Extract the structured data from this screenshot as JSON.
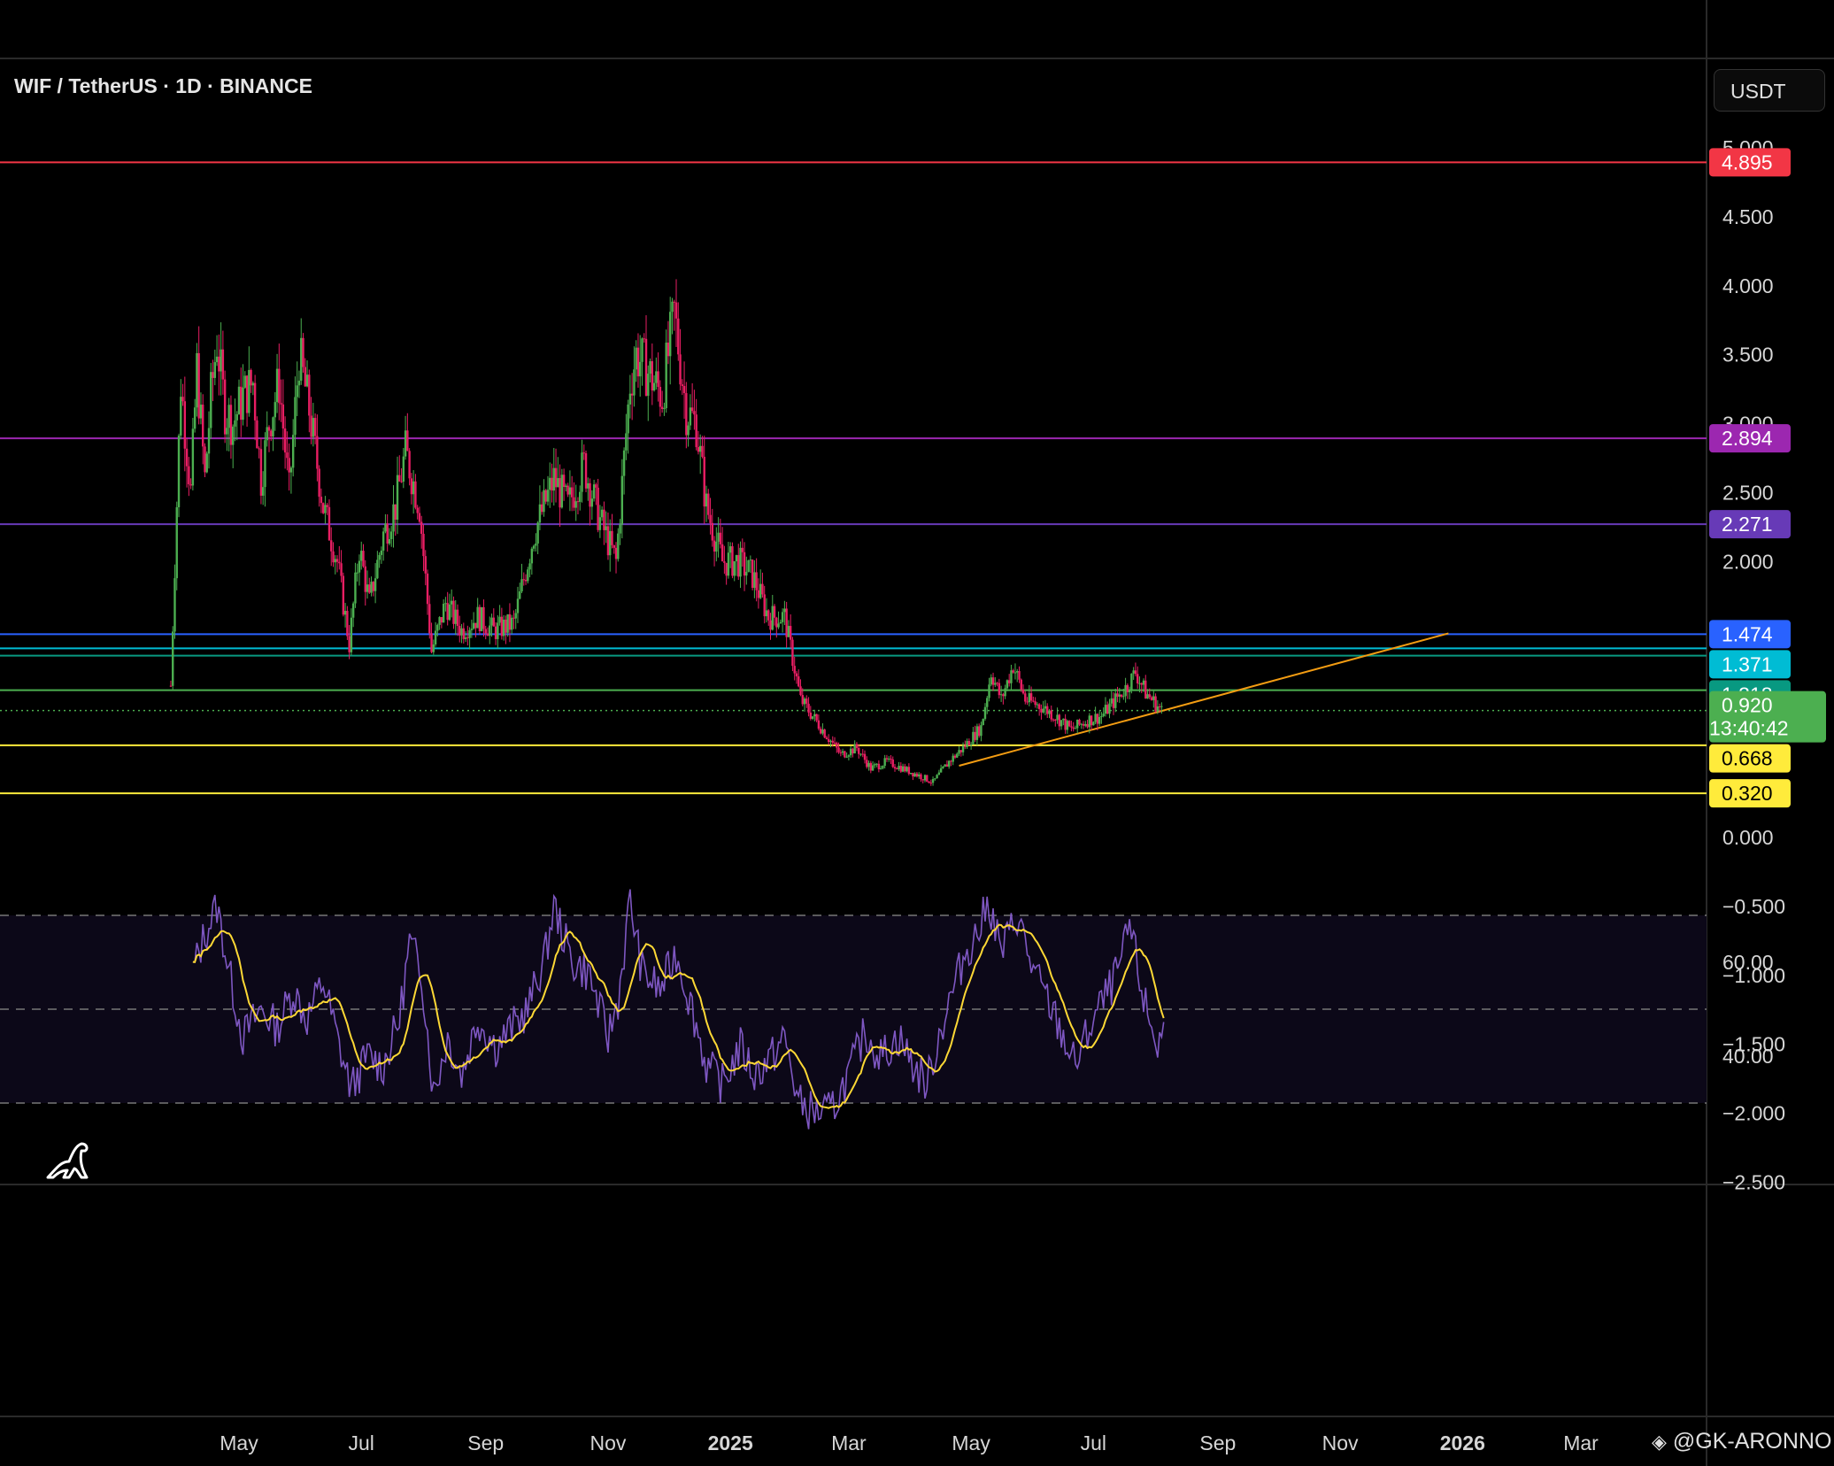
{
  "header": {
    "title": "WIF / TetherUS · 1D · BINANCE",
    "currency_label": "USDT"
  },
  "watermark": "@GK-ARONNO",
  "colors": {
    "background": "#000000",
    "up": "#4caf50",
    "down": "#e91e63",
    "grid": "#1e1e1e",
    "rsi_line": "#7e57c2",
    "rsi_ma": "#fdd835",
    "trendline": "#f39c12"
  },
  "price_axis": {
    "ticks": [
      "5.000",
      "4.500",
      "4.000",
      "3.500",
      "3.000",
      "2.500",
      "2.000",
      "0.000",
      "−0.500",
      "−1.000",
      "−1.500",
      "−2.000",
      "−2.500"
    ],
    "tick_values": [
      5.0,
      4.5,
      4.0,
      3.5,
      3.0,
      2.5,
      2.0,
      0.0,
      -0.5,
      -1.0,
      -1.5,
      -2.0,
      -2.5
    ]
  },
  "price_levels": [
    {
      "label": "4.895",
      "value": 4.895,
      "color": "#f23645",
      "badge_text": "#ffffff"
    },
    {
      "label": "2.894",
      "value": 2.894,
      "color": "#9c27b0",
      "badge_text": "#ffffff"
    },
    {
      "label": "2.271",
      "value": 2.271,
      "color": "#673ab7",
      "badge_text": "#ffffff"
    },
    {
      "label": "1.474",
      "value": 1.474,
      "color": "#2962ff",
      "badge_text": "#ffffff"
    },
    {
      "label": "1.371",
      "value": 1.371,
      "color": "#00bcd4",
      "badge_text": "#ffffff"
    },
    {
      "label": "1.318",
      "value": 1.318,
      "color": "#089981",
      "badge_text": "#ffffff"
    },
    {
      "label": "1.068",
      "value": 1.068,
      "color": "#4caf50",
      "badge_text": "#ffffff"
    },
    {
      "label": "0.668",
      "value": 0.668,
      "color": "#ffeb3b",
      "badge_text": "#000000"
    },
    {
      "label": "0.320",
      "value": 0.32,
      "color": "#ffeb3b",
      "badge_text": "#000000"
    }
  ],
  "current_price": {
    "label": "0.920",
    "countdown": "13:40:42",
    "value": 0.92,
    "color": "#4caf50"
  },
  "time_axis": [
    {
      "label": "May",
      "date": "2024-05-01",
      "bold": false
    },
    {
      "label": "Jul",
      "date": "2024-07-01",
      "bold": false
    },
    {
      "label": "Sep",
      "date": "2024-09-01",
      "bold": false
    },
    {
      "label": "Nov",
      "date": "2024-11-01",
      "bold": false
    },
    {
      "label": "2025",
      "date": "2025-01-01",
      "bold": true
    },
    {
      "label": "Mar",
      "date": "2025-03-01",
      "bold": false
    },
    {
      "label": "May",
      "date": "2025-05-01",
      "bold": false
    },
    {
      "label": "Jul",
      "date": "2025-07-01",
      "bold": false
    },
    {
      "label": "Sep",
      "date": "2025-09-01",
      "bold": false
    },
    {
      "label": "Nov",
      "date": "2025-11-01",
      "bold": false
    },
    {
      "label": "2026",
      "date": "2026-01-01",
      "bold": true
    },
    {
      "label": "Mar",
      "date": "2026-03-01",
      "bold": false
    }
  ],
  "rsi_axis": {
    "ticks": [
      "60.00",
      "40.00"
    ],
    "tick_values": [
      60,
      40
    ],
    "bands": [
      70,
      50,
      30
    ]
  },
  "trendline": {
    "start": {
      "date": "2025-04-25",
      "value": 0.52
    },
    "end": {
      "date": "2025-12-25",
      "value": 1.48
    }
  },
  "chart_data": {
    "type": "candlestick",
    "symbol": "WIF / TetherUS",
    "interval": "1D",
    "exchange": "BINANCE",
    "date_range": [
      "2024-03-28",
      "2025-08-04"
    ],
    "close_anchors": [
      [
        "2024-03-28",
        1.1
      ],
      [
        "2024-04-02",
        3.3
      ],
      [
        "2024-04-07",
        2.5
      ],
      [
        "2024-04-10",
        3.4
      ],
      [
        "2024-04-14",
        2.6
      ],
      [
        "2024-04-17",
        3.2
      ],
      [
        "2024-04-20",
        3.6
      ],
      [
        "2024-04-24",
        3.1
      ],
      [
        "2024-04-28",
        3.0
      ],
      [
        "2024-05-03",
        3.2
      ],
      [
        "2024-05-08",
        3.3
      ],
      [
        "2024-05-12",
        2.6
      ],
      [
        "2024-05-16",
        3.0
      ],
      [
        "2024-05-21",
        3.3
      ],
      [
        "2024-05-26",
        2.5
      ],
      [
        "2024-05-31",
        3.5
      ],
      [
        "2024-06-05",
        3.1
      ],
      [
        "2024-06-12",
        2.4
      ],
      [
        "2024-06-19",
        2.0
      ],
      [
        "2024-06-25",
        1.4
      ],
      [
        "2024-06-30",
        2.1
      ],
      [
        "2024-07-05",
        1.7
      ],
      [
        "2024-07-12",
        2.2
      ],
      [
        "2024-07-18",
        2.4
      ],
      [
        "2024-07-23",
        2.8
      ],
      [
        "2024-07-30",
        2.4
      ],
      [
        "2024-08-05",
        1.35
      ],
      [
        "2024-08-12",
        1.7
      ],
      [
        "2024-08-20",
        1.5
      ],
      [
        "2024-08-28",
        1.6
      ],
      [
        "2024-09-05",
        1.5
      ],
      [
        "2024-09-15",
        1.55
      ],
      [
        "2024-09-25",
        2.2
      ],
      [
        "2024-10-05",
        2.6
      ],
      [
        "2024-10-12",
        2.4
      ],
      [
        "2024-10-20",
        2.7
      ],
      [
        "2024-10-28",
        2.3
      ],
      [
        "2024-11-05",
        2.0
      ],
      [
        "2024-11-12",
        3.3
      ],
      [
        "2024-11-15",
        3.5
      ],
      [
        "2024-11-20",
        3.4
      ],
      [
        "2024-11-28",
        3.2
      ],
      [
        "2024-12-04",
        3.8
      ],
      [
        "2024-12-10",
        3.1
      ],
      [
        "2024-12-15",
        3.0
      ],
      [
        "2024-12-20",
        2.4
      ],
      [
        "2024-12-28",
        2.0
      ],
      [
        "2025-01-05",
        2.0
      ],
      [
        "2025-01-12",
        1.9
      ],
      [
        "2025-01-20",
        1.6
      ],
      [
        "2025-01-28",
        1.6
      ],
      [
        "2025-02-05",
        1.0
      ],
      [
        "2025-02-15",
        0.8
      ],
      [
        "2025-02-25",
        0.6
      ],
      [
        "2025-03-05",
        0.65
      ],
      [
        "2025-03-12",
        0.5
      ],
      [
        "2025-03-20",
        0.55
      ],
      [
        "2025-03-28",
        0.5
      ],
      [
        "2025-04-05",
        0.45
      ],
      [
        "2025-04-12",
        0.4
      ],
      [
        "2025-04-20",
        0.55
      ],
      [
        "2025-04-27",
        0.65
      ],
      [
        "2025-05-06",
        0.8
      ],
      [
        "2025-05-11",
        1.2
      ],
      [
        "2025-05-16",
        1.0
      ],
      [
        "2025-05-22",
        1.25
      ],
      [
        "2025-05-28",
        1.0
      ],
      [
        "2025-06-05",
        0.95
      ],
      [
        "2025-06-12",
        0.88
      ],
      [
        "2025-06-20",
        0.78
      ],
      [
        "2025-06-28",
        0.85
      ],
      [
        "2025-07-05",
        0.88
      ],
      [
        "2025-07-12",
        1.0
      ],
      [
        "2025-07-18",
        1.1
      ],
      [
        "2025-07-22",
        1.2
      ],
      [
        "2025-07-27",
        1.05
      ],
      [
        "2025-08-04",
        0.92
      ]
    ],
    "rsi": {
      "name": "RSI 14",
      "ma_name": "RSI-based MA",
      "anchors": [
        [
          "2024-04-08",
          58
        ],
        [
          "2024-04-14",
          66
        ],
        [
          "2024-04-20",
          72
        ],
        [
          "2024-04-27",
          56
        ],
        [
          "2024-05-03",
          44
        ],
        [
          "2024-05-12",
          50
        ],
        [
          "2024-05-20",
          46
        ],
        [
          "2024-05-28",
          54
        ],
        [
          "2024-06-04",
          48
        ],
        [
          "2024-06-12",
          56
        ],
        [
          "2024-06-20",
          42
        ],
        [
          "2024-06-26",
          33
        ],
        [
          "2024-07-04",
          40
        ],
        [
          "2024-07-12",
          38
        ],
        [
          "2024-07-20",
          48
        ],
        [
          "2024-07-25",
          64
        ],
        [
          "2024-07-31",
          58
        ],
        [
          "2024-08-06",
          32
        ],
        [
          "2024-08-13",
          44
        ],
        [
          "2024-08-20",
          36
        ],
        [
          "2024-08-28",
          48
        ],
        [
          "2024-09-06",
          42
        ],
        [
          "2024-09-14",
          46
        ],
        [
          "2024-09-22",
          50
        ],
        [
          "2024-10-01",
          62
        ],
        [
          "2024-10-05",
          72
        ],
        [
          "2024-10-14",
          60
        ],
        [
          "2024-10-22",
          58
        ],
        [
          "2024-11-01",
          44
        ],
        [
          "2024-11-06",
          52
        ],
        [
          "2024-11-12",
          73
        ],
        [
          "2024-11-18",
          58
        ],
        [
          "2024-11-27",
          54
        ],
        [
          "2024-12-05",
          62
        ],
        [
          "2024-12-13",
          50
        ],
        [
          "2024-12-20",
          38
        ],
        [
          "2024-12-28",
          34
        ],
        [
          "2025-01-06",
          42
        ],
        [
          "2025-01-13",
          36
        ],
        [
          "2025-01-22",
          40
        ],
        [
          "2025-01-28",
          44
        ],
        [
          "2025-02-04",
          30
        ],
        [
          "2025-02-12",
          28
        ],
        [
          "2025-02-20",
          28
        ],
        [
          "2025-03-01",
          36
        ],
        [
          "2025-03-09",
          45
        ],
        [
          "2025-03-17",
          40
        ],
        [
          "2025-03-26",
          44
        ],
        [
          "2025-04-02",
          38
        ],
        [
          "2025-04-09",
          34
        ],
        [
          "2025-04-16",
          46
        ],
        [
          "2025-04-22",
          54
        ],
        [
          "2025-04-28",
          62
        ],
        [
          "2025-05-04",
          66
        ],
        [
          "2025-05-10",
          73
        ],
        [
          "2025-05-16",
          62
        ],
        [
          "2025-05-24",
          70
        ],
        [
          "2025-06-01",
          58
        ],
        [
          "2025-06-08",
          52
        ],
        [
          "2025-06-16",
          44
        ],
        [
          "2025-06-22",
          38
        ],
        [
          "2025-07-01",
          48
        ],
        [
          "2025-07-09",
          54
        ],
        [
          "2025-07-15",
          60
        ],
        [
          "2025-07-19",
          68
        ],
        [
          "2025-07-26",
          52
        ],
        [
          "2025-08-02",
          42
        ],
        [
          "2025-08-05",
          46
        ]
      ]
    },
    "levels": [
      4.895,
      2.894,
      2.271,
      1.474,
      1.371,
      1.318,
      1.068,
      0.668,
      0.32
    ],
    "current_price": 0.92
  }
}
